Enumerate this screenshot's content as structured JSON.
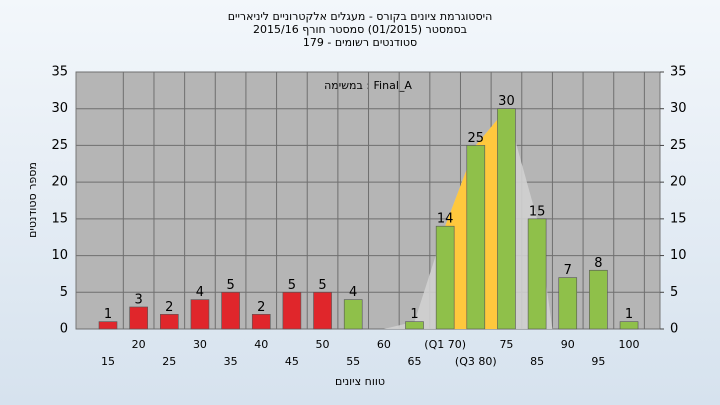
{
  "chart_data": {
    "type": "bar",
    "title": [
      "היסטוגרמת ציונים בקורס - מעגלים אלקטרוניים ליניאריים",
      "בסמסטר  (01/2015)  סמסטר חורף 2015/16",
      "סטודנטים רשומים - 179"
    ],
    "annotation": "במשימה : Final_A",
    "x_label": "טווח ציונים",
    "y_label": "מספר סטודנטים",
    "categories": [
      "15",
      "20",
      "25",
      "30",
      "35",
      "40",
      "45",
      "50",
      "55",
      "60",
      "65",
      "(Q1 70)",
      "(Q3 80)",
      "75",
      "85",
      "90",
      "95",
      "100"
    ],
    "values": [
      1,
      3,
      2,
      4,
      5,
      2,
      5,
      5,
      4,
      null,
      1,
      14,
      25,
      30,
      15,
      7,
      8,
      1
    ],
    "colors": [
      "#e0262b",
      "#e0262b",
      "#e0262b",
      "#e0262b",
      "#e0262b",
      "#e0262b",
      "#e0262b",
      "#e0262b",
      "#8fc04a",
      "#8fc04a",
      "#8fc04a",
      "#8fc04a",
      "#8fc04a",
      "#8fc04a",
      "#8fc04a",
      "#8fc04a",
      "#8fc04a",
      "#8fc04a"
    ],
    "quartile_color": "#ffc83d",
    "ylim": [
      0,
      35
    ],
    "yticks": [
      0,
      5,
      10,
      15,
      20,
      25,
      30,
      35
    ],
    "y2lim": [
      0,
      35
    ],
    "y2ticks": [
      0,
      5,
      10,
      15,
      20,
      25,
      30,
      35
    ],
    "grid": true
  }
}
